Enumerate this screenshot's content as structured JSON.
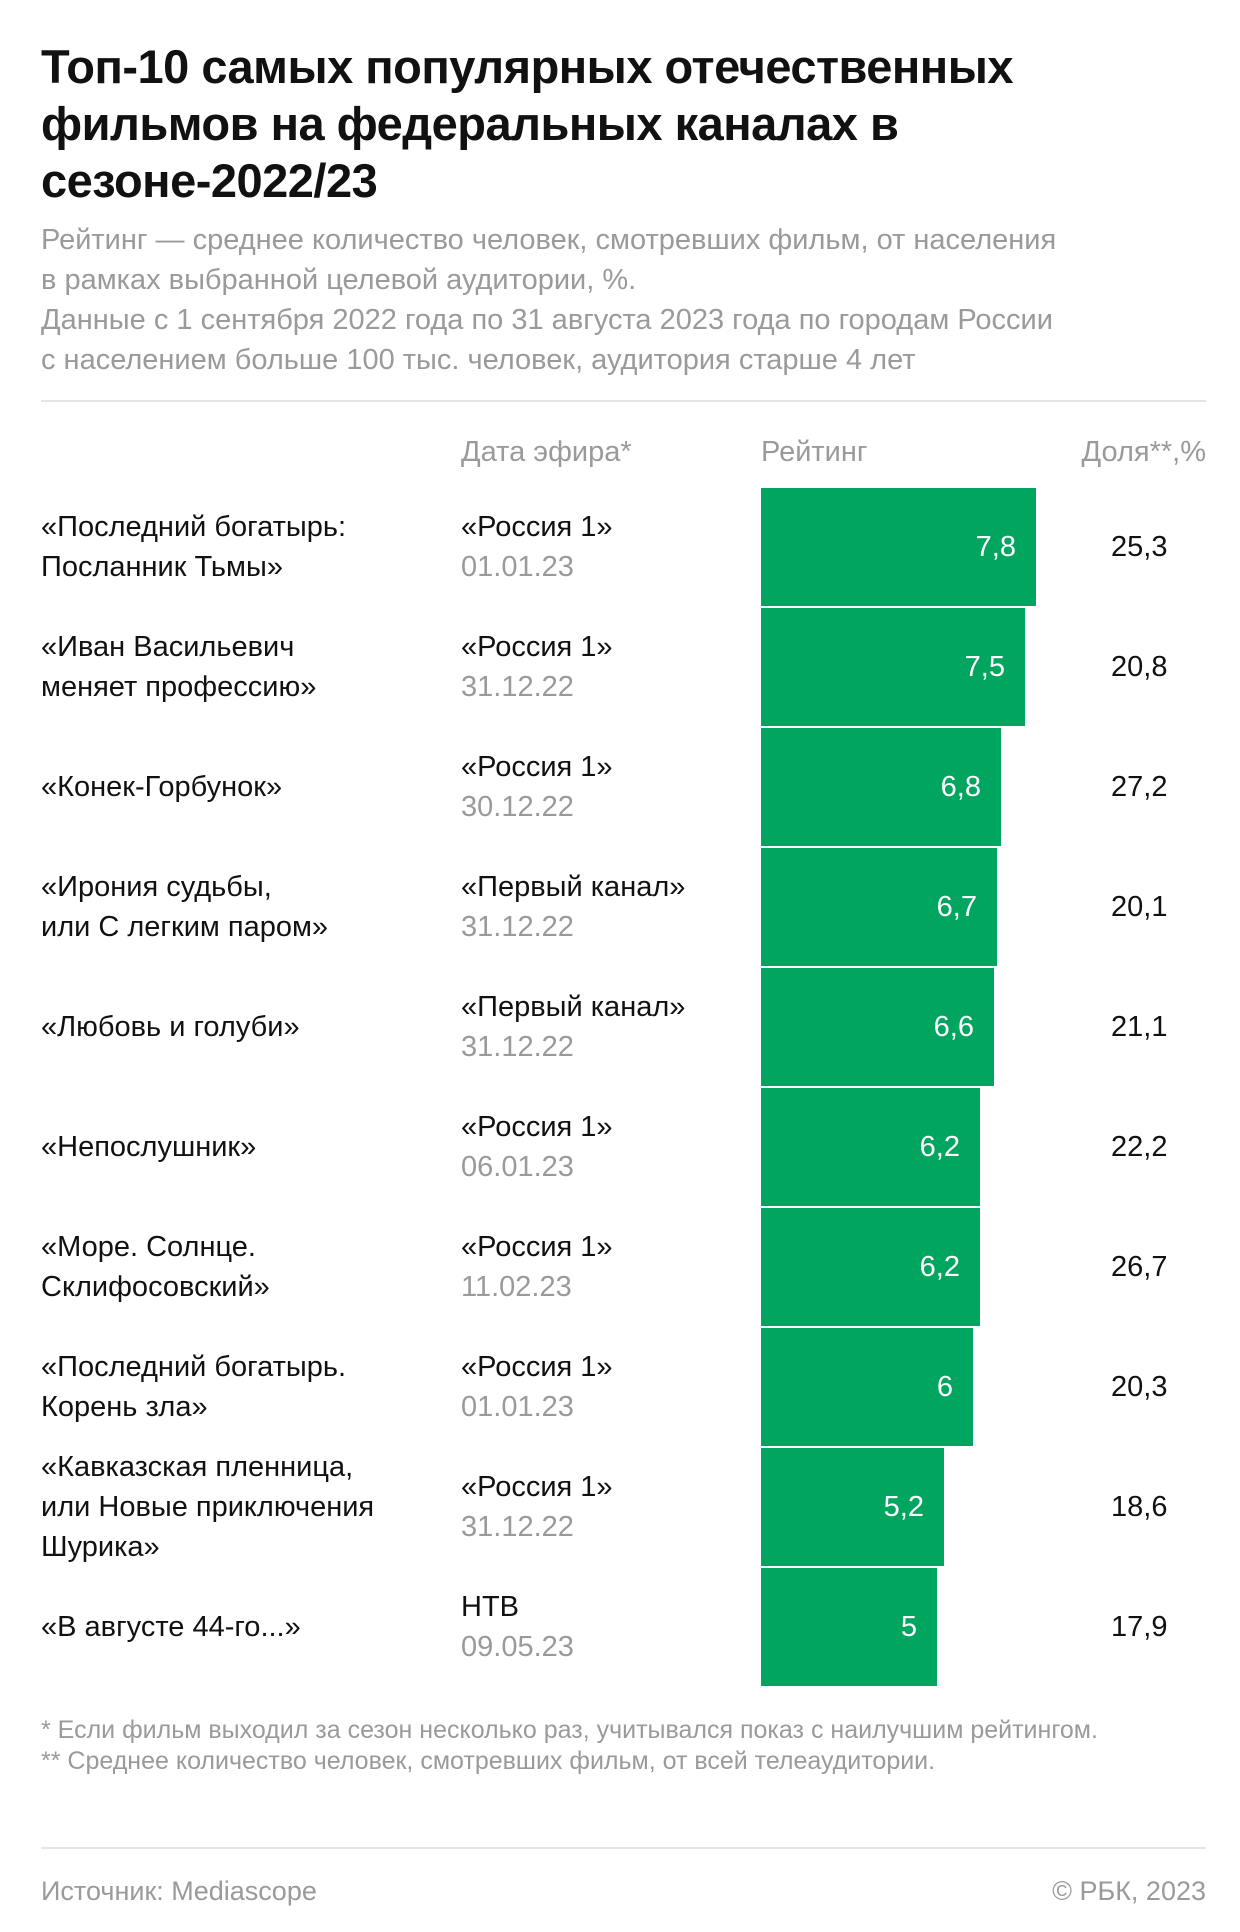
{
  "title": "Топ-10 самых популярных отечественных фильмов на федеральных каналах в сезоне-2022/23",
  "subtitle": [
    "Рейтинг — среднее количество человек, смотревших фильм, от населения",
    "в рамках выбранной целевой аудитории, %.",
    "Данные с 1 сентября 2022 года по 31 августа 2023 года по городам России",
    "с населением больше 100 тыс. человек, аудитория старше 4 лет"
  ],
  "columns": {
    "date": "Дата эфира*",
    "rating": "Рейтинг",
    "share": "Доля**,%"
  },
  "colors": {
    "bar": "#00a65f"
  },
  "chart_data": {
    "type": "bar",
    "orientation": "horizontal",
    "xlim": [
      0,
      7.8
    ],
    "categories": [
      "«Последний богатырь: Посланник Тьмы»",
      "«Иван Васильевич меняет профессию»",
      "«Конек-Горбунок»",
      "«Ирония судьбы, или С легким паром»",
      "«Любовь и голуби»",
      "«Непослушник»",
      "«Море. Солнце. Склифосовский»",
      "«Последний богатырь. Корень зла»",
      "«Кавказская пленница, или Новые приключения Шурика»",
      "«В августе 44-го...»"
    ],
    "rows": [
      {
        "film": "«Последний богатырь:\nПосланник Тьмы»",
        "channel": "«Россия 1»",
        "date": "01.01.23",
        "rating": 7.8,
        "rating_label": "7,8",
        "share": "25,3"
      },
      {
        "film": "«Иван Васильевич\nменяет профессию»",
        "channel": "«Россия 1»",
        "date": "31.12.22",
        "rating": 7.5,
        "rating_label": "7,5",
        "share": "20,8"
      },
      {
        "film": "«Конек-Горбунок»",
        "channel": "«Россия 1»",
        "date": "30.12.22",
        "rating": 6.8,
        "rating_label": "6,8",
        "share": "27,2"
      },
      {
        "film": "«Ирония судьбы,\nили С легким паром»",
        "channel": "«Первый канал»",
        "date": "31.12.22",
        "rating": 6.7,
        "rating_label": "6,7",
        "share": "20,1"
      },
      {
        "film": "«Любовь и голуби»",
        "channel": "«Первый канал»",
        "date": "31.12.22",
        "rating": 6.6,
        "rating_label": "6,6",
        "share": "21,1"
      },
      {
        "film": "«Непослушник»",
        "channel": "«Россия 1»",
        "date": "06.01.23",
        "rating": 6.2,
        "rating_label": "6,2",
        "share": "22,2"
      },
      {
        "film": "«Море. Солнце.\nСклифосовский»",
        "channel": "«Россия 1»",
        "date": "11.02.23",
        "rating": 6.2,
        "rating_label": "6,2",
        "share": "26,7"
      },
      {
        "film": "«Последний богатырь.\nКорень зла»",
        "channel": "«Россия 1»",
        "date": "01.01.23",
        "rating": 6.0,
        "rating_label": "6",
        "share": "20,3"
      },
      {
        "film": "«Кавказская пленница,\nили Новые приключения\nШурика»",
        "channel": "«Россия 1»",
        "date": "31.12.22",
        "rating": 5.2,
        "rating_label": "5,2",
        "share": "18,6"
      },
      {
        "film": "«В августе 44-го...»",
        "channel": "НТВ",
        "date": "09.05.23",
        "rating": 5.0,
        "rating_label": "5",
        "share": "17,9"
      }
    ]
  },
  "footnotes": [
    "* Если фильм выходил за сезон несколько раз, учитывался показ с наилучшим рейтингом.",
    "** Среднее количество человек, смотревших фильм, от всей телеаудитории."
  ],
  "footer": {
    "source": "Источник: Mediascope",
    "copyright": "© РБК, 2023"
  }
}
